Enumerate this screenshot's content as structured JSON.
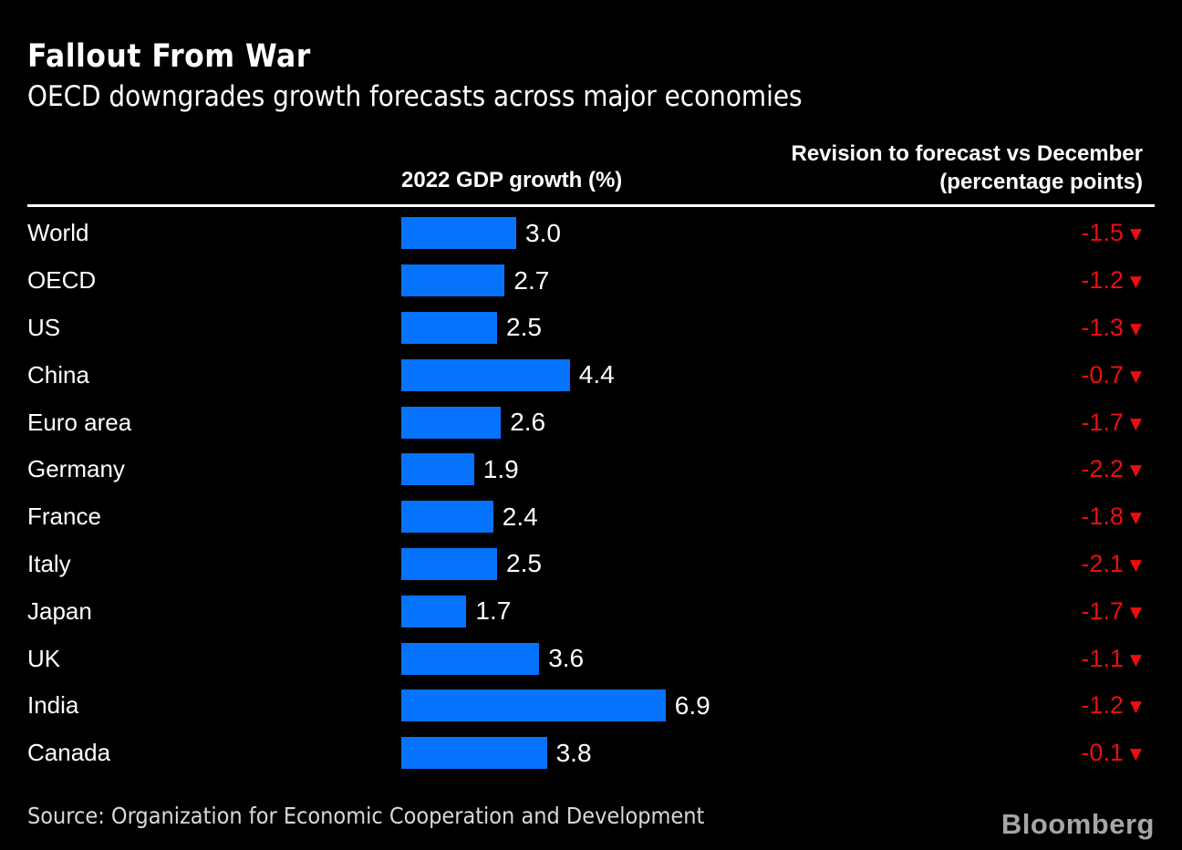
{
  "header": {
    "title": "Fallout From War",
    "subtitle": "OECD downgrades growth forecasts across major economies"
  },
  "columns": {
    "gdp_header": "2022 GDP growth (%)",
    "revision_header_line1": "Revision to forecast vs December",
    "revision_header_line2": "(percentage points)"
  },
  "chart_data": {
    "type": "bar",
    "orientation": "horizontal",
    "title": "Fallout From War",
    "subtitle": "OECD downgrades growth forecasts across major economies",
    "categories": [
      "World",
      "OECD",
      "US",
      "China",
      "Euro area",
      "Germany",
      "France",
      "Italy",
      "Japan",
      "UK",
      "India",
      "Canada"
    ],
    "series": [
      {
        "name": "2022 GDP growth (%)",
        "values": [
          3.0,
          2.7,
          2.5,
          4.4,
          2.6,
          1.9,
          2.4,
          2.5,
          1.7,
          3.6,
          6.9,
          3.8
        ],
        "labels": [
          "3.0",
          "2.7",
          "2.5",
          "4.4",
          "2.6",
          "1.9",
          "2.4",
          "2.5",
          "1.7",
          "3.6",
          "6.9",
          "3.8"
        ],
        "color": "#0673ff"
      },
      {
        "name": "Revision to forecast vs December (percentage points)",
        "values": [
          -1.5,
          -1.2,
          -1.3,
          -0.7,
          -1.7,
          -2.2,
          -1.8,
          -2.1,
          -1.7,
          -1.1,
          -1.2,
          -0.1
        ],
        "labels": [
          "-1.5",
          "-1.2",
          "-1.3",
          "-0.7",
          "-1.7",
          "-2.2",
          "-1.8",
          "-2.1",
          "-1.7",
          "-1.1",
          "-1.2",
          "-0.1"
        ],
        "marker": "down-triangle",
        "color": "#ee0d0d"
      }
    ],
    "xlim": [
      0,
      7.4
    ],
    "grid": false,
    "legend": false
  },
  "icons": {
    "down_triangle": "▼"
  },
  "colors": {
    "background": "#000000",
    "bar_blue": "#0673ff",
    "revision_red": "#ee0d0d",
    "text_white": "#ffffff",
    "source_gray": "#d8d8d8",
    "brand_gray": "#a6a6a6"
  },
  "footer": {
    "source": "Source: Organization for Economic Cooperation and Development",
    "brand": "Bloomberg"
  }
}
